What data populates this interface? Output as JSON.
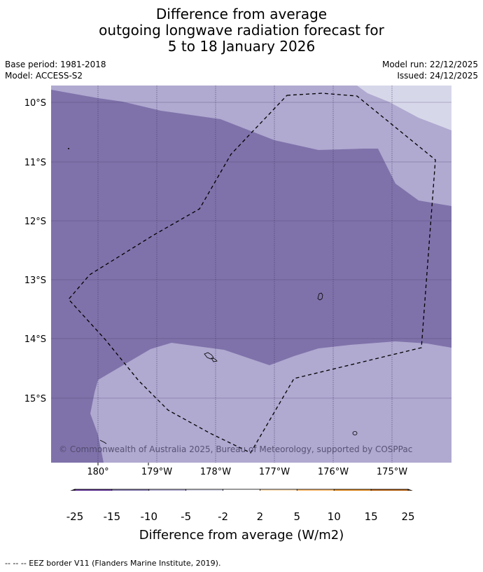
{
  "title": {
    "line1": "Difference from average",
    "line2": "outgoing longwave radiation forecast for",
    "line3": "5 to 18 January 2026"
  },
  "meta": {
    "base_period": "Base period: 1981-2018",
    "model": "Model: ACCESS-S2",
    "model_run": "Model run: 22/12/2025",
    "issued": "Issued: 24/12/2025"
  },
  "map": {
    "lat_labels": [
      "10°S",
      "11°S",
      "12°S",
      "13°S",
      "14°S",
      "15°S"
    ],
    "lon_labels": [
      "180°",
      "179°W",
      "178°W",
      "177°W",
      "176°W",
      "175°W"
    ],
    "copyright": "© Commonwealth of Australia 2025, Bureau of Meteorology, supported by COSPPac",
    "colors": {
      "bin_-15_-10": "#7f72aa",
      "bin_-10_-5": "#b0a9d0",
      "bin_-5_-2": "#d7d7ea"
    }
  },
  "colorbar": {
    "ticks": [
      "-25",
      "-15",
      "-10",
      "-5",
      "-2",
      "2",
      "5",
      "10",
      "15",
      "25"
    ],
    "colors": [
      "#3e0f5b",
      "#57278e",
      "#7f72aa",
      "#b0a9d0",
      "#d7d7ea",
      "#ffffff",
      "#fee0b6",
      "#fdb863",
      "#e08214",
      "#b35806",
      "#7f3b08"
    ],
    "label": "Difference from average (W/m2)"
  },
  "footnote": "--  --  -- EEZ border V11 (Flanders Marine Institute, 2019)."
}
